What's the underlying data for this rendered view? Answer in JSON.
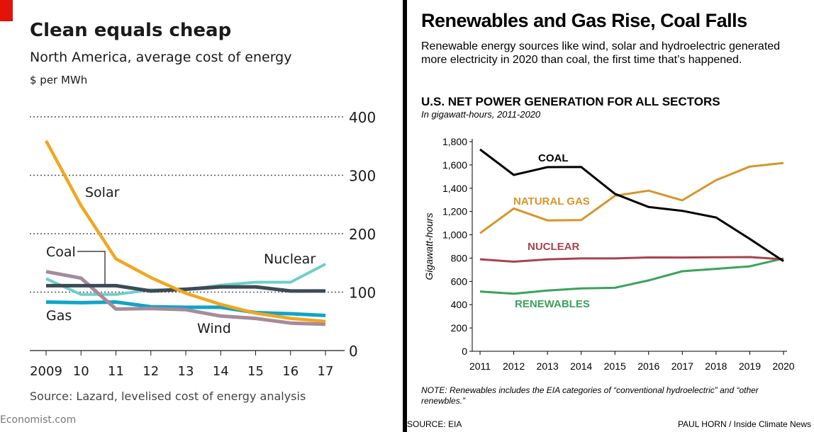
{
  "left": {
    "title": "Clean equals cheap",
    "subtitle": "North America, average cost of energy",
    "unit": "$ per MWh",
    "source": "Source: Lazard, levelised cost of energy analysis",
    "logo": "Economist.com"
  },
  "right": {
    "headline": "Renewables and Gas Rise, Coal Falls",
    "dek": "Renewable energy sources like wind, solar and hydroelectric generated more electricity in 2020 than coal, the first time that’s happened.",
    "chart_title": "U.S. NET POWER GENERATION FOR ALL SECTORS",
    "chart_subtitle": "In gigawatt-hours, 2011-2020",
    "note": "NOTE: Renewables includes the EIA categories of “conventional hydroelectric” and “other renewbles.”",
    "source": "SOURCE: EIA",
    "credit": "PAUL HORN / Inside Climate News"
  },
  "colors": {
    "solar": "#f0a71f",
    "coal_left": "#3c4a55",
    "nuclear_left": "#6fcfc6",
    "gas_left": "#11a4c8",
    "wind": "#a58b9a",
    "coal_right": "#000000",
    "gas_right": "#d6952a",
    "nuclear_right": "#a8434f",
    "renewables": "#3aa35a"
  },
  "chart_data": [
    {
      "type": "line",
      "title": "Clean equals cheap",
      "subtitle": "North America, average cost of energy",
      "ylabel": "$ per MWh",
      "x": [
        "2009",
        "10",
        "11",
        "12",
        "13",
        "14",
        "15",
        "16",
        "17"
      ],
      "ylim": [
        0,
        400
      ],
      "yticks": [
        0,
        100,
        200,
        300,
        400
      ],
      "grid": true,
      "series": [
        {
          "name": "Solar",
          "values": [
            359,
            248,
            157,
            125,
            98,
            79,
            64,
            55,
            50
          ]
        },
        {
          "name": "Coal",
          "values": [
            111,
            111,
            111,
            102,
            105,
            109,
            109,
            102,
            102
          ]
        },
        {
          "name": "Nuclear",
          "values": [
            123,
            96,
            96,
            104,
            104,
            112,
            117,
            117,
            148
          ]
        },
        {
          "name": "Gas",
          "values": [
            83,
            82,
            83,
            75,
            74,
            74,
            65,
            63,
            60
          ]
        },
        {
          "name": "Wind",
          "values": [
            135,
            124,
            71,
            72,
            70,
            59,
            55,
            47,
            45
          ]
        }
      ]
    },
    {
      "type": "line",
      "title": "U.S. NET POWER GENERATION FOR ALL SECTORS",
      "subtitle": "In gigawatt-hours, 2011-2020",
      "ylabel": "Gigawatt-hours",
      "x": [
        "2011",
        "2012",
        "2013",
        "2014",
        "2015",
        "2016",
        "2017",
        "2018",
        "2019",
        "2020"
      ],
      "ylim": [
        0,
        1800
      ],
      "yticks": [
        0,
        200,
        400,
        600,
        800,
        1000,
        1200,
        1400,
        1600,
        1800
      ],
      "ytick_labels": [
        "0",
        "200",
        "400",
        "600",
        "800",
        "1,000",
        "1,200",
        "1,400",
        "1,600",
        "1,800"
      ],
      "grid": false,
      "series": [
        {
          "name": "COAL",
          "values": [
            1733,
            1514,
            1581,
            1582,
            1352,
            1239,
            1206,
            1149,
            965,
            774
          ]
        },
        {
          "name": "NATURAL GAS",
          "values": [
            1014,
            1226,
            1124,
            1127,
            1335,
            1379,
            1296,
            1469,
            1586,
            1617
          ]
        },
        {
          "name": "NUCLEAR",
          "values": [
            790,
            769,
            789,
            797,
            797,
            806,
            805,
            807,
            809,
            790
          ]
        },
        {
          "name": "RENEWABLES",
          "values": [
            513,
            494,
            522,
            540,
            545,
            609,
            687,
            708,
            729,
            797
          ]
        }
      ]
    }
  ]
}
